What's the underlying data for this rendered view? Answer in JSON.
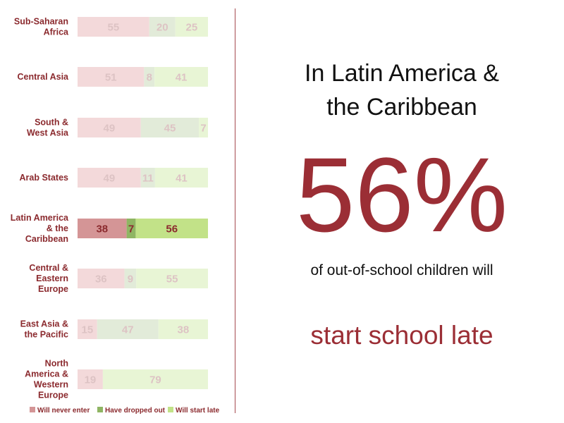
{
  "chart_data": {
    "type": "bar",
    "stacked": true,
    "orientation": "horizontal",
    "categories": [
      [
        "Sub-Saharan",
        "Africa"
      ],
      [
        "Central Asia"
      ],
      [
        "South &",
        "West Asia"
      ],
      [
        "Arab States"
      ],
      [
        "Latin America",
        "& the",
        "Caribbean"
      ],
      [
        "Central &",
        "Eastern",
        "Europe"
      ],
      [
        "East Asia &",
        "the Pacific"
      ],
      [
        "North",
        "America &",
        "Western",
        "Europe"
      ]
    ],
    "highlight_index": 4,
    "series": [
      {
        "name": "Will never enter",
        "values": [
          55,
          51,
          49,
          49,
          38,
          36,
          15,
          19
        ]
      },
      {
        "name": "Have dropped out",
        "values": [
          20,
          8,
          45,
          11,
          7,
          9,
          47,
          null
        ]
      },
      {
        "name": "Will start late",
        "values": [
          25,
          41,
          7,
          41,
          56,
          55,
          38,
          79
        ]
      }
    ],
    "legend_position": "bottom",
    "colors": {
      "highlight": [
        "#d49596",
        "#8fb563",
        "#c2e288"
      ],
      "faded": [
        "#f3d9da",
        "#e2ebd9",
        "#e8f5d5"
      ],
      "label_highlight": "#8b2a2e",
      "label_faded": "#ddc3c4"
    }
  },
  "panel": {
    "headline_line1": "In Latin America &",
    "headline_line2": "the Caribbean",
    "big_percent": "56%",
    "subtext": "of out-of-school children will",
    "emphasis": "start school late"
  }
}
